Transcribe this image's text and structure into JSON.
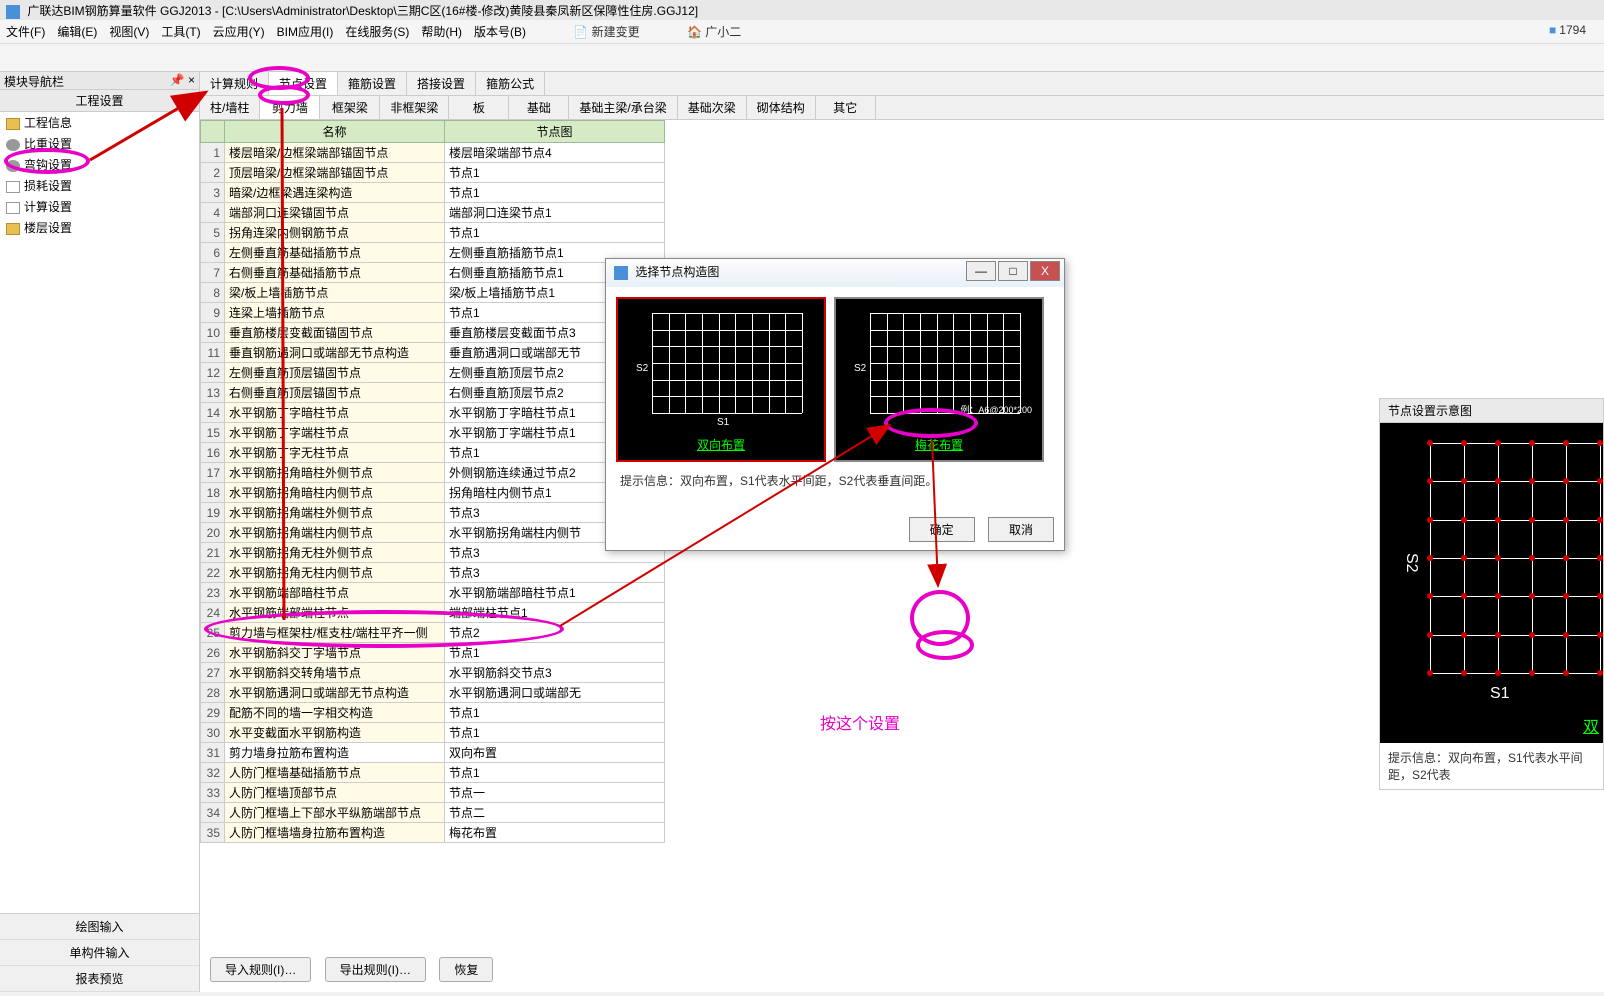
{
  "window": {
    "title": "广联达BIM钢筋算量软件 GGJ2013 - [C:\\Users\\Administrator\\Desktop\\三期C区(16#楼-修改)黄陵县秦凤新区保障性住房.GGJ12]",
    "counter": "1794"
  },
  "menu": {
    "items": [
      "文件(F)",
      "编辑(E)",
      "视图(V)",
      "工具(T)",
      "云应用(Y)",
      "BIM应用(I)",
      "在线服务(S)",
      "帮助(H)",
      "版本号(B)"
    ],
    "extras": [
      "新建变更",
      "广小二"
    ]
  },
  "nav": {
    "header": "模块导航栏",
    "section": "工程设置",
    "items": [
      {
        "label": "工程信息",
        "icon": "folder"
      },
      {
        "label": "比重设置",
        "icon": "gear"
      },
      {
        "label": "弯钩设置",
        "icon": "gear"
      },
      {
        "label": "损耗设置",
        "icon": "doc"
      },
      {
        "label": "计算设置",
        "icon": "doc"
      },
      {
        "label": "楼层设置",
        "icon": "folder"
      }
    ],
    "bottom": [
      "绘图输入",
      "单构件输入",
      "报表预览"
    ]
  },
  "tabs": {
    "row1": [
      "计算规则",
      "节点设置",
      "箍筋设置",
      "搭接设置",
      "箍筋公式"
    ],
    "row1_active": 1,
    "row2": [
      "柱/墙柱",
      "剪力墙",
      "框架梁",
      "非框架梁",
      "板",
      "基础",
      "基础主梁/承台梁",
      "基础次梁",
      "砌体结构",
      "其它"
    ],
    "row2_active": 1
  },
  "table": {
    "headers": [
      "",
      "名称",
      "节点图"
    ],
    "rows": [
      {
        "n": 1,
        "name": "楼层暗梁/边框梁端部锚固节点",
        "node": "楼层暗梁端部节点4"
      },
      {
        "n": 2,
        "name": "顶层暗梁/边框梁端部锚固节点",
        "node": "节点1"
      },
      {
        "n": 3,
        "name": "暗梁/边框梁遇连梁构造",
        "node": "节点1"
      },
      {
        "n": 4,
        "name": "端部洞口连梁锚固节点",
        "node": "端部洞口连梁节点1"
      },
      {
        "n": 5,
        "name": "拐角连梁内侧钢筋节点",
        "node": "节点1"
      },
      {
        "n": 6,
        "name": "左侧垂直筋基础插筋节点",
        "node": "左侧垂直筋插筋节点1"
      },
      {
        "n": 7,
        "name": "右侧垂直筋基础插筋节点",
        "node": "右侧垂直筋插筋节点1"
      },
      {
        "n": 8,
        "name": "梁/板上墙插筋节点",
        "node": "梁/板上墙插筋节点1"
      },
      {
        "n": 9,
        "name": "连梁上墙插筋节点",
        "node": "节点1"
      },
      {
        "n": 10,
        "name": "垂直筋楼层变截面锚固节点",
        "node": "垂直筋楼层变截面节点3"
      },
      {
        "n": 11,
        "name": "垂直钢筋遇洞口或端部无节点构造",
        "node": "垂直筋遇洞口或端部无节"
      },
      {
        "n": 12,
        "name": "左侧垂直筋顶层锚固节点",
        "node": "左侧垂直筋顶层节点2"
      },
      {
        "n": 13,
        "name": "右侧垂直筋顶层锚固节点",
        "node": "右侧垂直筋顶层节点2"
      },
      {
        "n": 14,
        "name": "水平钢筋丁字暗柱节点",
        "node": "水平钢筋丁字暗柱节点1"
      },
      {
        "n": 15,
        "name": "水平钢筋丁字端柱节点",
        "node": "水平钢筋丁字端柱节点1"
      },
      {
        "n": 16,
        "name": "水平钢筋丁字无柱节点",
        "node": "节点1"
      },
      {
        "n": 17,
        "name": "水平钢筋拐角暗柱外侧节点",
        "node": "外侧钢筋连续通过节点2"
      },
      {
        "n": 18,
        "name": "水平钢筋拐角暗柱内侧节点",
        "node": "拐角暗柱内侧节点1"
      },
      {
        "n": 19,
        "name": "水平钢筋拐角端柱外侧节点",
        "node": "节点3"
      },
      {
        "n": 20,
        "name": "水平钢筋拐角端柱内侧节点",
        "node": "水平钢筋拐角端柱内侧节"
      },
      {
        "n": 21,
        "name": "水平钢筋拐角无柱外侧节点",
        "node": "节点3"
      },
      {
        "n": 22,
        "name": "水平钢筋拐角无柱内侧节点",
        "node": "节点3"
      },
      {
        "n": 23,
        "name": "水平钢筋端部暗柱节点",
        "node": "水平钢筋端部暗柱节点1"
      },
      {
        "n": 24,
        "name": "水平钢筋端部端柱节点",
        "node": "端部端柱节点1"
      },
      {
        "n": 25,
        "name": "剪力墙与框架柱/框支柱/端柱平齐一侧",
        "node": "节点2"
      },
      {
        "n": 26,
        "name": "水平钢筋斜交丁字墙节点",
        "node": "节点1"
      },
      {
        "n": 27,
        "name": "水平钢筋斜交转角墙节点",
        "node": "水平钢筋斜交节点3"
      },
      {
        "n": 28,
        "name": "水平钢筋遇洞口或端部无节点构造",
        "node": "水平钢筋遇洞口或端部无"
      },
      {
        "n": 29,
        "name": "配筋不同的墙一字相交构造",
        "node": "节点1"
      },
      {
        "n": 30,
        "name": "水平变截面水平钢筋构造",
        "node": "节点1"
      },
      {
        "n": 31,
        "name": "剪力墙身拉筋布置构造",
        "node": "双向布置"
      },
      {
        "n": 32,
        "name": "人防门框墙基础插筋节点",
        "node": "节点1"
      },
      {
        "n": 33,
        "name": "人防门框墙顶部节点",
        "node": "节点一"
      },
      {
        "n": 34,
        "name": "人防门框墙上下部水平纵筋端部节点",
        "node": "节点二"
      },
      {
        "n": 35,
        "name": "人防门框墙墙身拉筋布置构造",
        "node": "梅花布置"
      }
    ]
  },
  "buttons": {
    "import": "导入规则(I)…",
    "export": "导出规则(I)…",
    "restore": "恢复"
  },
  "dialog": {
    "title": "选择节点构造图",
    "option1": "双向布置",
    "option2": "梅花布置",
    "axis_s1": "S1",
    "axis_s2": "S2",
    "extra_label": "例：A6@200*200",
    "hint": "提示信息：双向布置，S1代表水平间距，S2代表垂直间距。",
    "ok": "确定",
    "cancel": "取消"
  },
  "preview": {
    "title": "节点设置示意图",
    "axis_s1": "S1",
    "axis_s2": "S2",
    "green_label": "双",
    "hint": "提示信息：双向布置，S1代表水平间距，S2代表"
  },
  "annotation": {
    "text": "按这个设置"
  },
  "colors": {
    "pink": "#e800c8",
    "red_arrow": "#d00000",
    "green": "#00ff00",
    "table_header": "#d6ebc5",
    "name_bg": "#fffbe6"
  }
}
